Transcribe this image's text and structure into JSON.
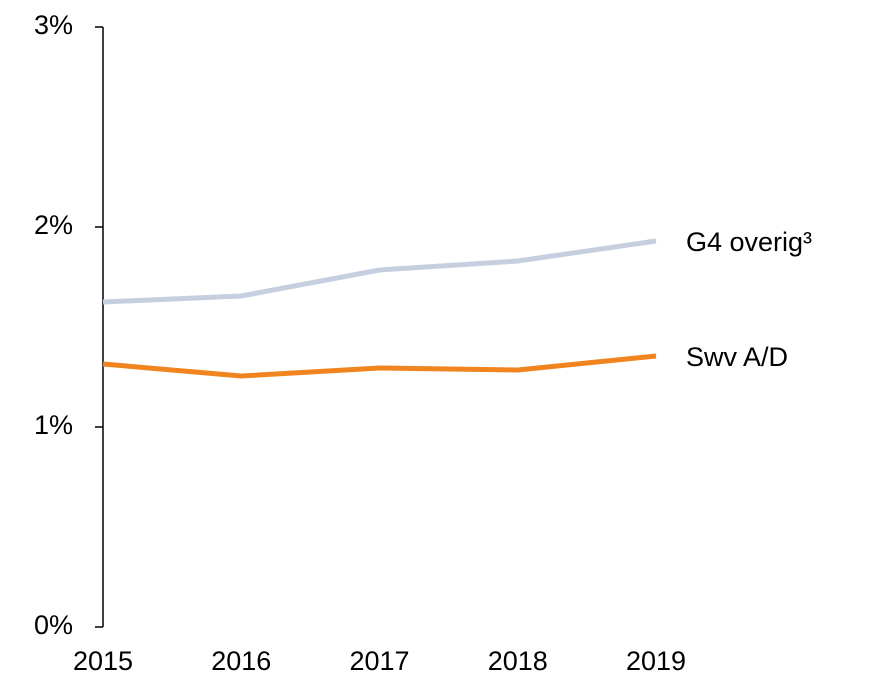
{
  "chart_data": {
    "type": "line",
    "categories": [
      "2015",
      "2016",
      "2017",
      "2018",
      "2019"
    ],
    "series": [
      {
        "name": "G4 overig³",
        "color": "#c5cfe0",
        "values": [
          1.625,
          1.655,
          1.785,
          1.83,
          1.93
        ]
      },
      {
        "name": "Swv A/D",
        "color": "#f0841f",
        "values": [
          1.315,
          1.255,
          1.295,
          1.285,
          1.355
        ]
      }
    ],
    "ylim": [
      0,
      3
    ],
    "yticks": [
      {
        "value": 0,
        "label": "0%"
      },
      {
        "value": 1,
        "label": "1%"
      },
      {
        "value": 2,
        "label": "2%"
      },
      {
        "value": 3,
        "label": "3%"
      }
    ]
  }
}
